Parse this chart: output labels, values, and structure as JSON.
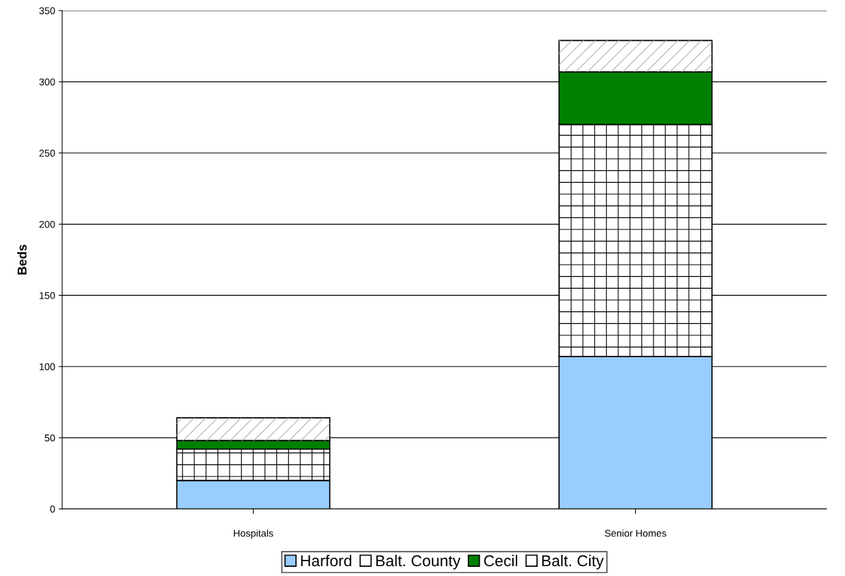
{
  "chart_data": {
    "type": "bar",
    "stacked": true,
    "ylabel": "Beds",
    "categories": [
      "Hospitals",
      "Senior Homes"
    ],
    "series": [
      {
        "name": "Harford",
        "color": "#99ccff",
        "values": [
          20,
          107
        ]
      },
      {
        "name": "Balt. County",
        "color": "#ffffff",
        "values": [
          22,
          163
        ]
      },
      {
        "name": "Cecil",
        "color": "#008000",
        "values": [
          6,
          37
        ]
      },
      {
        "name": "Balt. City",
        "color": "#ffffff",
        "values": [
          16,
          22
        ]
      }
    ],
    "ylim": [
      0,
      350
    ],
    "yticks": [
      0,
      50,
      100,
      150,
      200,
      250,
      300,
      350
    ],
    "grid": "y",
    "legend": "bottom"
  }
}
